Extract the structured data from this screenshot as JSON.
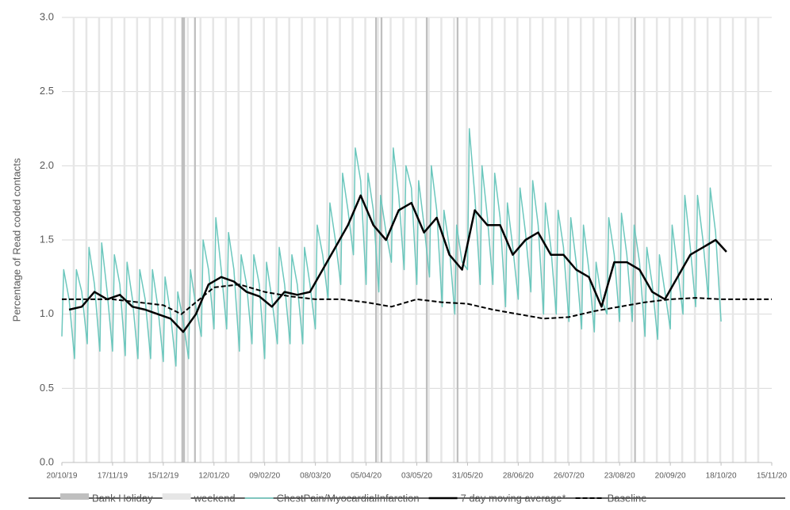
{
  "chart_data": {
    "type": "line",
    "y_label": "Percentage of Read coded contacts",
    "xlim": [
      0,
      392
    ],
    "ylim": [
      0,
      3.0
    ],
    "xticks": [
      {
        "value": 0,
        "label": "20/10/19"
      },
      {
        "value": 28,
        "label": "17/11/19"
      },
      {
        "value": 56,
        "label": "15/12/19"
      },
      {
        "value": 84,
        "label": "12/01/20"
      },
      {
        "value": 112,
        "label": "09/02/20"
      },
      {
        "value": 140,
        "label": "08/03/20"
      },
      {
        "value": 168,
        "label": "05/04/20"
      },
      {
        "value": 196,
        "label": "03/05/20"
      },
      {
        "value": 224,
        "label": "31/05/20"
      },
      {
        "value": 252,
        "label": "28/06/20"
      },
      {
        "value": 280,
        "label": "26/07/20"
      },
      {
        "value": 308,
        "label": "23/08/20"
      },
      {
        "value": 336,
        "label": "20/09/20"
      },
      {
        "value": 364,
        "label": "18/10/20"
      },
      {
        "value": 392,
        "label": "15/11/20"
      }
    ],
    "yticks": [
      {
        "value": 0,
        "label": "0.0"
      },
      {
        "value": 0.5,
        "label": "0.5"
      },
      {
        "value": 1,
        "label": "1.0"
      },
      {
        "value": 1.5,
        "label": "1.5"
      },
      {
        "value": 2,
        "label": "2.0"
      },
      {
        "value": 2.5,
        "label": "2.5"
      },
      {
        "value": 3,
        "label": "3.0"
      }
    ],
    "grid": true,
    "legend": "bottom",
    "series": [
      {
        "name": "Bank Holiday",
        "kind": "band",
        "color": "#bfbfbf",
        "x": [
          66,
          67,
          73,
          173,
          176,
          201,
          218,
          316
        ]
      },
      {
        "name": "weekend",
        "kind": "band",
        "color": "#e6e6e6",
        "x": [
          6,
          13,
          20,
          27,
          34,
          41,
          48,
          55,
          62,
          69,
          76,
          83,
          90,
          97,
          104,
          111,
          118,
          125,
          132,
          139,
          146,
          153,
          160,
          167,
          174,
          181,
          188,
          195,
          202,
          209,
          216,
          223,
          230,
          237,
          244,
          251,
          258,
          265,
          272,
          279,
          286,
          293,
          300,
          307,
          314,
          321,
          328,
          335,
          342,
          349,
          356,
          363,
          370,
          377,
          384
        ]
      },
      {
        "name": "ChestPain/MyocardialInfarction",
        "kind": "line",
        "color": "#6cc7bd",
        "x": [
          0,
          1,
          4,
          7,
          8,
          11,
          14,
          15,
          18,
          21,
          22,
          25,
          28,
          29,
          32,
          35,
          36,
          39,
          42,
          43,
          46,
          49,
          50,
          53,
          56,
          57,
          60,
          63,
          64,
          67,
          70,
          71,
          74,
          77,
          78,
          81,
          84,
          85,
          88,
          91,
          92,
          95,
          98,
          99,
          102,
          105,
          106,
          109,
          112,
          113,
          116,
          119,
          120,
          123,
          126,
          127,
          130,
          133,
          134,
          137,
          140,
          141,
          144,
          147,
          148,
          151,
          154,
          155,
          158,
          161,
          162,
          165,
          168,
          169,
          172,
          175,
          176,
          179,
          182,
          183,
          186,
          189,
          190,
          193,
          196,
          197,
          200,
          203,
          204,
          207,
          210,
          211,
          214,
          217,
          218,
          221,
          224,
          225,
          228,
          231,
          232,
          235,
          238,
          239,
          242,
          245,
          246,
          249,
          252,
          253,
          256,
          259,
          260,
          263,
          266,
          267,
          270,
          273,
          274,
          277,
          280,
          281,
          284,
          287,
          288,
          291,
          294,
          295,
          298,
          301,
          302,
          305,
          308,
          309,
          312,
          315,
          316,
          319,
          322,
          323,
          326,
          329,
          330,
          333,
          336,
          337,
          340,
          343,
          344,
          347,
          350,
          351,
          354,
          357,
          358,
          361,
          364
        ],
        "values": [
          0.85,
          1.3,
          1.1,
          0.7,
          1.3,
          1.15,
          0.8,
          1.45,
          1.2,
          0.75,
          1.48,
          1.15,
          0.75,
          1.4,
          1.2,
          0.72,
          1.35,
          1.1,
          0.7,
          1.3,
          1.1,
          0.7,
          1.3,
          1.05,
          0.68,
          1.25,
          1.0,
          0.65,
          1.15,
          0.95,
          0.7,
          1.3,
          1.05,
          0.85,
          1.5,
          1.3,
          0.9,
          1.65,
          1.3,
          0.9,
          1.55,
          1.3,
          0.75,
          1.4,
          1.2,
          0.8,
          1.4,
          1.2,
          0.7,
          1.35,
          1.1,
          0.8,
          1.45,
          1.2,
          0.8,
          1.4,
          1.2,
          0.8,
          1.45,
          1.2,
          0.9,
          1.6,
          1.4,
          1.1,
          1.75,
          1.5,
          1.2,
          1.95,
          1.7,
          1.4,
          2.12,
          1.9,
          1.2,
          1.95,
          1.7,
          1.15,
          1.8,
          1.55,
          1.35,
          2.12,
          1.8,
          1.3,
          2.0,
          1.85,
          1.2,
          1.9,
          1.6,
          1.25,
          2.0,
          1.7,
          1.05,
          1.7,
          1.45,
          1.0,
          1.6,
          1.35,
          1.3,
          2.25,
          1.8,
          1.2,
          2.0,
          1.65,
          1.2,
          1.95,
          1.65,
          1.05,
          1.75,
          1.45,
          1.1,
          1.85,
          1.55,
          1.15,
          1.9,
          1.6,
          1.0,
          1.75,
          1.45,
          1.0,
          1.7,
          1.45,
          0.95,
          1.65,
          1.35,
          0.9,
          1.6,
          1.3,
          0.88,
          1.35,
          1.1,
          1.0,
          1.65,
          1.4,
          0.95,
          1.68,
          1.4,
          0.95,
          1.6,
          1.35,
          0.85,
          1.45,
          1.2,
          0.83,
          1.4,
          1.15,
          0.9,
          1.6,
          1.3,
          1.0,
          1.8,
          1.45,
          1.05,
          1.8,
          1.5,
          1.1,
          1.85,
          1.55,
          0.95
        ]
      },
      {
        "name": "7 day moving average*",
        "kind": "line",
        "color": "#000000",
        "x": [
          4,
          11,
          18,
          25,
          32,
          39,
          46,
          53,
          60,
          67,
          74,
          81,
          88,
          95,
          102,
          109,
          116,
          123,
          130,
          137,
          144,
          151,
          158,
          165,
          172,
          179,
          186,
          193,
          200,
          207,
          214,
          221,
          228,
          235,
          242,
          249,
          256,
          263,
          270,
          277,
          284,
          291,
          298,
          305,
          312,
          319,
          326,
          333,
          340,
          347,
          354,
          361,
          367
        ],
        "values": [
          1.03,
          1.05,
          1.15,
          1.1,
          1.13,
          1.05,
          1.03,
          1.0,
          0.97,
          0.88,
          1.0,
          1.2,
          1.25,
          1.22,
          1.15,
          1.12,
          1.05,
          1.15,
          1.13,
          1.15,
          1.3,
          1.45,
          1.6,
          1.8,
          1.6,
          1.5,
          1.7,
          1.75,
          1.55,
          1.65,
          1.4,
          1.3,
          1.7,
          1.6,
          1.6,
          1.4,
          1.5,
          1.55,
          1.4,
          1.4,
          1.3,
          1.25,
          1.05,
          1.35,
          1.35,
          1.3,
          1.15,
          1.1,
          1.25,
          1.4,
          1.45,
          1.5,
          1.42
        ]
      },
      {
        "name": "Baseline",
        "kind": "line",
        "dashed": true,
        "color": "#000000",
        "x": [
          0,
          28,
          56,
          66,
          84,
          98,
          112,
          126,
          140,
          154,
          168,
          182,
          196,
          210,
          224,
          238,
          252,
          266,
          280,
          294,
          308,
          322,
          336,
          350,
          364,
          378,
          392
        ],
        "values": [
          1.1,
          1.1,
          1.06,
          1.0,
          1.18,
          1.2,
          1.15,
          1.12,
          1.1,
          1.1,
          1.08,
          1.05,
          1.1,
          1.08,
          1.07,
          1.03,
          1.0,
          0.97,
          0.98,
          1.02,
          1.05,
          1.08,
          1.1,
          1.11,
          1.1,
          1.1,
          1.1
        ]
      }
    ]
  }
}
